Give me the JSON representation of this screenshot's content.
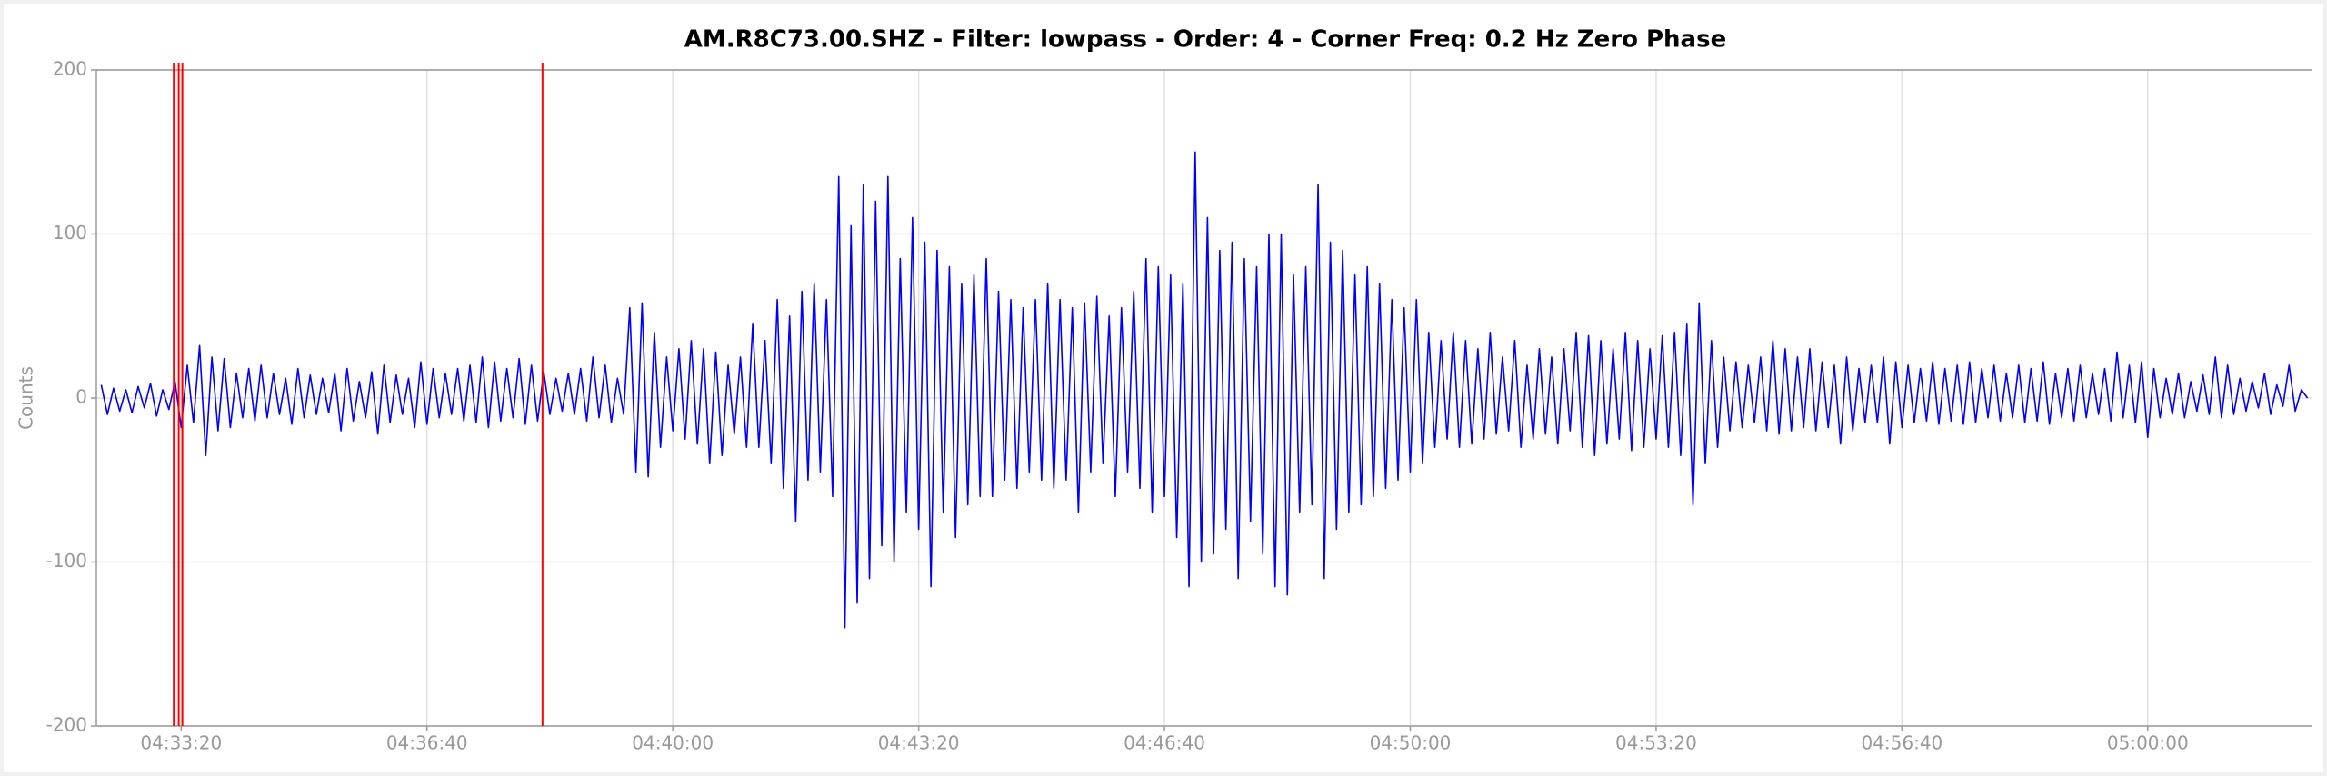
{
  "chart_data": {
    "type": "line",
    "title": "AM.R8C73.00.SHZ - Filter: lowpass - Order: 4 - Corner Freq: 0.2 Hz Zero Phase",
    "ylabel": "Counts",
    "xlim": [
      "04:32:11",
      "05:02:14"
    ],
    "xticks": [
      "04:33:20",
      "04:36:40",
      "04:40:00",
      "04:43:20",
      "04:46:40",
      "04:50:00",
      "04:53:20",
      "04:56:40",
      "05:00:00"
    ],
    "ylim": [
      -200,
      200
    ],
    "yticks": [
      -200,
      -100,
      0,
      100,
      200
    ],
    "grid": true,
    "markers": {
      "color": "#ff0000",
      "x": [
        "04:33:14",
        "04:33:18",
        "04:33:21",
        "04:38:14"
      ]
    },
    "series": [
      {
        "name": "AM.R8C73.00.SHZ",
        "color": "#0000ff",
        "x": [
          "04:32:15",
          "04:32:20",
          "04:32:25",
          "04:32:30",
          "04:32:35",
          "04:32:40",
          "04:32:45",
          "04:32:50",
          "04:32:55",
          "04:33:00",
          "04:33:05",
          "04:33:10",
          "04:33:15",
          "04:33:20",
          "04:33:25",
          "04:33:30",
          "04:33:35",
          "04:33:40",
          "04:33:45",
          "04:33:50",
          "04:33:55",
          "04:34:00",
          "04:34:05",
          "04:34:10",
          "04:34:15",
          "04:34:20",
          "04:34:25",
          "04:34:30",
          "04:34:35",
          "04:34:40",
          "04:34:45",
          "04:34:50",
          "04:34:55",
          "04:35:00",
          "04:35:05",
          "04:35:10",
          "04:35:15",
          "04:35:20",
          "04:35:25",
          "04:35:30",
          "04:35:35",
          "04:35:40",
          "04:35:45",
          "04:35:50",
          "04:35:55",
          "04:36:00",
          "04:36:05",
          "04:36:10",
          "04:36:15",
          "04:36:20",
          "04:36:25",
          "04:36:30",
          "04:36:35",
          "04:36:40",
          "04:36:45",
          "04:36:50",
          "04:36:55",
          "04:37:00",
          "04:37:05",
          "04:37:10",
          "04:37:15",
          "04:37:20",
          "04:37:25",
          "04:37:30",
          "04:37:35",
          "04:37:40",
          "04:37:45",
          "04:37:50",
          "04:37:55",
          "04:38:00",
          "04:38:05",
          "04:38:10",
          "04:38:15",
          "04:38:20",
          "04:38:25",
          "04:38:30",
          "04:38:35",
          "04:38:40",
          "04:38:45",
          "04:38:50",
          "04:38:55",
          "04:39:00",
          "04:39:05",
          "04:39:10",
          "04:39:15",
          "04:39:20",
          "04:39:25",
          "04:39:30",
          "04:39:35",
          "04:39:40",
          "04:39:45",
          "04:39:50",
          "04:39:55",
          "04:40:00",
          "04:40:05",
          "04:40:10",
          "04:40:15",
          "04:40:20",
          "04:40:25",
          "04:40:30",
          "04:40:35",
          "04:40:40",
          "04:40:45",
          "04:40:50",
          "04:40:55",
          "04:41:00",
          "04:41:05",
          "04:41:10",
          "04:41:15",
          "04:41:20",
          "04:41:25",
          "04:41:30",
          "04:41:35",
          "04:41:40",
          "04:41:45",
          "04:41:50",
          "04:41:55",
          "04:42:00",
          "04:42:05",
          "04:42:10",
          "04:42:15",
          "04:42:20",
          "04:42:25",
          "04:42:30",
          "04:42:35",
          "04:42:40",
          "04:42:45",
          "04:42:50",
          "04:42:55",
          "04:43:00",
          "04:43:05",
          "04:43:10",
          "04:43:15",
          "04:43:20",
          "04:43:25",
          "04:43:30",
          "04:43:35",
          "04:43:40",
          "04:43:45",
          "04:43:50",
          "04:43:55",
          "04:44:00",
          "04:44:05",
          "04:44:10",
          "04:44:15",
          "04:44:20",
          "04:44:25",
          "04:44:30",
          "04:44:35",
          "04:44:40",
          "04:44:45",
          "04:44:50",
          "04:44:55",
          "04:45:00",
          "04:45:05",
          "04:45:10",
          "04:45:15",
          "04:45:20",
          "04:45:25",
          "04:45:30",
          "04:45:35",
          "04:45:40",
          "04:45:45",
          "04:45:50",
          "04:45:55",
          "04:46:00",
          "04:46:05",
          "04:46:10",
          "04:46:15",
          "04:46:20",
          "04:46:25",
          "04:46:30",
          "04:46:35",
          "04:46:40",
          "04:46:45",
          "04:46:50",
          "04:46:55",
          "04:47:00",
          "04:47:05",
          "04:47:10",
          "04:47:15",
          "04:47:20",
          "04:47:25",
          "04:47:30",
          "04:47:35",
          "04:47:40",
          "04:47:45",
          "04:47:50",
          "04:47:55",
          "04:48:00",
          "04:48:05",
          "04:48:10",
          "04:48:15",
          "04:48:20",
          "04:48:25",
          "04:48:30",
          "04:48:35",
          "04:48:40",
          "04:48:45",
          "04:48:50",
          "04:48:55",
          "04:49:00",
          "04:49:05",
          "04:49:10",
          "04:49:15",
          "04:49:20",
          "04:49:25",
          "04:49:30",
          "04:49:35",
          "04:49:40",
          "04:49:45",
          "04:49:50",
          "04:49:55",
          "04:50:00",
          "04:50:05",
          "04:50:10",
          "04:50:15",
          "04:50:20",
          "04:50:25",
          "04:50:30",
          "04:50:35",
          "04:50:40",
          "04:50:45",
          "04:50:50",
          "04:50:55",
          "04:51:00",
          "04:51:05",
          "04:51:10",
          "04:51:15",
          "04:51:20",
          "04:51:25",
          "04:51:30",
          "04:51:35",
          "04:51:40",
          "04:51:45",
          "04:51:50",
          "04:51:55",
          "04:52:00",
          "04:52:05",
          "04:52:10",
          "04:52:15",
          "04:52:20",
          "04:52:25",
          "04:52:30",
          "04:52:35",
          "04:52:40",
          "04:52:45",
          "04:52:50",
          "04:52:55",
          "04:53:00",
          "04:53:05",
          "04:53:10",
          "04:53:15",
          "04:53:20",
          "04:53:25",
          "04:53:30",
          "04:53:35",
          "04:53:40",
          "04:53:45",
          "04:53:50",
          "04:53:55",
          "04:54:00",
          "04:54:05",
          "04:54:10",
          "04:54:15",
          "04:54:20",
          "04:54:25",
          "04:54:30",
          "04:54:35",
          "04:54:40",
          "04:54:45",
          "04:54:50",
          "04:54:55",
          "04:55:00",
          "04:55:05",
          "04:55:10",
          "04:55:15",
          "04:55:20",
          "04:55:25",
          "04:55:30",
          "04:55:35",
          "04:55:40",
          "04:55:45",
          "04:55:50",
          "04:55:55",
          "04:56:00",
          "04:56:05",
          "04:56:10",
          "04:56:15",
          "04:56:20",
          "04:56:25",
          "04:56:30",
          "04:56:35",
          "04:56:40",
          "04:56:45",
          "04:56:50",
          "04:56:55",
          "04:57:00",
          "04:57:05",
          "04:57:10",
          "04:57:15",
          "04:57:20",
          "04:57:25",
          "04:57:30",
          "04:57:35",
          "04:57:40",
          "04:57:45",
          "04:57:50",
          "04:57:55",
          "04:58:00",
          "04:58:05",
          "04:58:10",
          "04:58:15",
          "04:58:20",
          "04:58:25",
          "04:58:30",
          "04:58:35",
          "04:58:40",
          "04:58:45",
          "04:58:50",
          "04:58:55",
          "04:59:00",
          "04:59:05",
          "04:59:10",
          "04:59:15",
          "04:59:20",
          "04:59:25",
          "04:59:30",
          "04:59:35",
          "04:59:40",
          "04:59:45",
          "04:59:50",
          "04:59:55",
          "05:00:00",
          "05:00:05",
          "05:00:10",
          "05:00:15",
          "05:00:20",
          "05:00:25",
          "05:00:30",
          "05:00:35",
          "05:00:40",
          "05:00:45",
          "05:00:50",
          "05:00:55",
          "05:01:00",
          "05:01:05",
          "05:01:10",
          "05:01:15",
          "05:01:20",
          "05:01:25",
          "05:01:30",
          "05:01:35",
          "05:01:40",
          "05:01:45",
          "05:01:50",
          "05:01:55",
          "05:02:00",
          "05:02:05",
          "05:02:10"
        ],
        "values": [
          8,
          -10,
          6,
          -8,
          5,
          -9,
          7,
          -6,
          9,
          -11,
          5,
          -7,
          10,
          -18,
          20,
          -15,
          32,
          -35,
          25,
          -20,
          24,
          -18,
          15,
          -12,
          18,
          -14,
          20,
          -12,
          15,
          -10,
          12,
          -16,
          18,
          -12,
          14,
          -10,
          12,
          -9,
          15,
          -20,
          18,
          -14,
          10,
          -12,
          16,
          -22,
          20,
          -15,
          14,
          -10,
          12,
          -18,
          22,
          -16,
          18,
          -12,
          15,
          -10,
          18,
          -14,
          20,
          -15,
          25,
          -18,
          22,
          -14,
          18,
          -12,
          24,
          -16,
          20,
          -14,
          16,
          -10,
          12,
          -8,
          15,
          -10,
          18,
          -14,
          25,
          -12,
          20,
          -15,
          12,
          -10,
          55,
          -45,
          58,
          -48,
          40,
          -30,
          25,
          -20,
          30,
          -25,
          35,
          -28,
          30,
          -40,
          28,
          -35,
          20,
          -22,
          25,
          -30,
          45,
          -30,
          35,
          -40,
          60,
          -55,
          50,
          -75,
          65,
          -50,
          70,
          -45,
          60,
          -60,
          135,
          -140,
          105,
          -125,
          130,
          -110,
          120,
          -90,
          135,
          -100,
          85,
          -70,
          110,
          -80,
          95,
          -115,
          90,
          -70,
          80,
          -85,
          70,
          -65,
          75,
          -60,
          85,
          -60,
          65,
          -50,
          60,
          -55,
          55,
          -45,
          60,
          -50,
          70,
          -55,
          60,
          -50,
          55,
          -70,
          58,
          -45,
          62,
          -40,
          50,
          -60,
          55,
          -45,
          65,
          -55,
          85,
          -70,
          80,
          -60,
          75,
          -85,
          70,
          -115,
          150,
          -100,
          110,
          -95,
          90,
          -80,
          95,
          -110,
          85,
          -75,
          80,
          -95,
          100,
          -115,
          100,
          -120,
          75,
          -70,
          80,
          -65,
          130,
          -110,
          95,
          -80,
          90,
          -70,
          75,
          -65,
          80,
          -60,
          70,
          -55,
          60,
          -50,
          55,
          -45,
          60,
          -40,
          40,
          -30,
          35,
          -25,
          40,
          -30,
          35,
          -28,
          30,
          -25,
          40,
          -22,
          25,
          -20,
          35,
          -30,
          20,
          -25,
          30,
          -22,
          25,
          -28,
          30,
          -20,
          40,
          -30,
          38,
          -35,
          35,
          -28,
          30,
          -25,
          40,
          -32,
          35,
          -30,
          30,
          -25,
          38,
          -30,
          40,
          -35,
          45,
          -65,
          58,
          -40,
          35,
          -30,
          25,
          -20,
          22,
          -18,
          20,
          -15,
          25,
          -20,
          35,
          -22,
          30,
          -20,
          25,
          -18,
          30,
          -20,
          22,
          -18,
          20,
          -28,
          25,
          -20,
          18,
          -15,
          20,
          -15,
          25,
          -28,
          22,
          -18,
          20,
          -15,
          18,
          -14,
          22,
          -16,
          18,
          -14,
          20,
          -16,
          22,
          -15,
          18,
          -12,
          20,
          -14,
          15,
          -12,
          20,
          -15,
          18,
          -14,
          22,
          -16,
          15,
          -12,
          18,
          -14,
          20,
          -12,
          15,
          -10,
          18,
          -14,
          28,
          -12,
          20,
          -15,
          22,
          -24,
          18,
          -12,
          12,
          -10,
          15,
          -12,
          10,
          -8,
          14,
          -10,
          25,
          -12,
          20,
          -10,
          12,
          -8,
          10,
          -6,
          15,
          -10,
          8,
          -5,
          20,
          -8,
          5,
          0
        ]
      }
    ]
  }
}
